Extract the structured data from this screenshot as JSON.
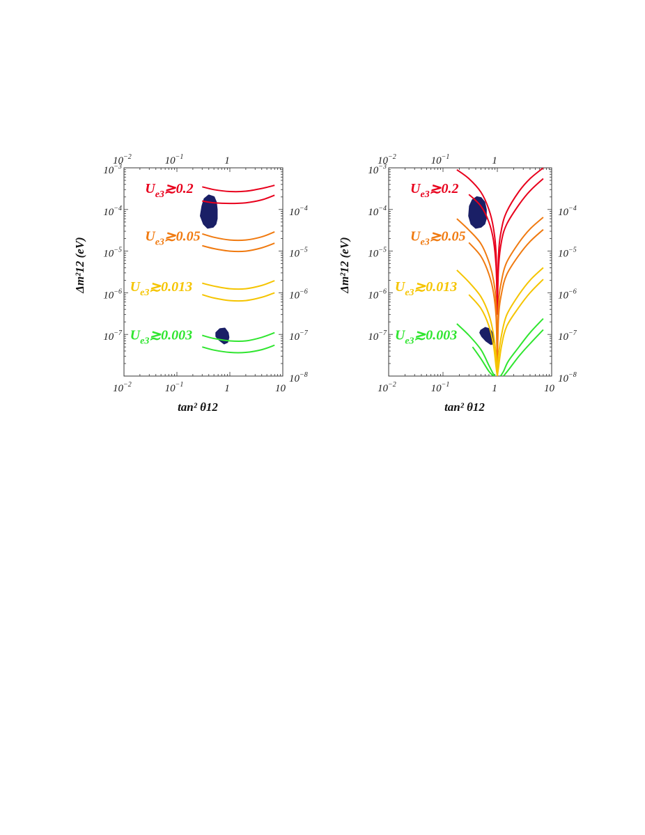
{
  "colors": {
    "red": "#e8001c",
    "orange": "#f07a10",
    "yellow": "#f5c400",
    "green": "#2fe52f",
    "region": "#1a1f66",
    "frame": "#333333"
  },
  "chart_data": [
    {
      "type": "line",
      "panel": "left",
      "xlabel": "tan² θ12",
      "ylabel": "Δm²12 (eV)",
      "x_scale": "log",
      "y_scale": "log",
      "xlim": [
        0.01,
        10
      ],
      "ylim": [
        1e-08,
        0.001
      ],
      "x_ticks": [
        {
          "v": 0.01,
          "base": "10",
          "exp": "−2"
        },
        {
          "v": 0.1,
          "base": "10",
          "exp": "−1"
        },
        {
          "v": 1,
          "base": "1",
          "exp": ""
        },
        {
          "v": 10,
          "base": "10",
          "exp": ""
        }
      ],
      "y_ticks_left": [
        {
          "v": 0.001,
          "base": "10",
          "exp": "−3"
        },
        {
          "v": 0.0001,
          "base": "10",
          "exp": "−4"
        },
        {
          "v": 1e-05,
          "base": "10",
          "exp": "−5"
        },
        {
          "v": 1e-06,
          "base": "10",
          "exp": "−6"
        },
        {
          "v": 1e-07,
          "base": "10",
          "exp": "−7"
        }
      ],
      "y_ticks_right": [
        {
          "v": 0.0001,
          "base": "10",
          "exp": "−4"
        },
        {
          "v": 1e-05,
          "base": "10",
          "exp": "−5"
        },
        {
          "v": 1e-06,
          "base": "10",
          "exp": "−6"
        },
        {
          "v": 1e-07,
          "base": "10",
          "exp": "−7"
        },
        {
          "v": 1e-08,
          "base": "10",
          "exp": "−8"
        }
      ],
      "band_labels": [
        {
          "sub": "e3",
          "text": "≳0.2",
          "color": "red",
          "x": 0.025,
          "y": 0.00025
        },
        {
          "sub": "e3",
          "text": "≳0.05",
          "color": "orange",
          "x": 0.025,
          "y": 1.8e-05
        },
        {
          "sub": "e3",
          "text": "≳0.013",
          "color": "yellow",
          "x": 0.013,
          "y": 1.1e-06
        },
        {
          "sub": "e3",
          "text": "≳0.003",
          "color": "green",
          "x": 0.013,
          "y": 7.5e-08
        }
      ],
      "series": [
        {
          "color": "red",
          "x": [
            0.3,
            0.5,
            1,
            2,
            4,
            7
          ],
          "y": [
            0.00035,
            0.0003,
            0.00027,
            0.000275,
            0.00032,
            0.00038
          ]
        },
        {
          "color": "red",
          "x": [
            0.3,
            0.5,
            1,
            2,
            4,
            7
          ],
          "y": [
            0.00016,
            0.000145,
            0.00014,
            0.000145,
            0.00017,
            0.00022
          ]
        },
        {
          "color": "orange",
          "x": [
            0.3,
            0.5,
            1,
            2,
            4,
            7
          ],
          "y": [
            2.6e-05,
            2.15e-05,
            1.85e-05,
            1.85e-05,
            2.2e-05,
            2.9e-05
          ]
        },
        {
          "color": "orange",
          "x": [
            0.3,
            0.5,
            1,
            2,
            4,
            7
          ],
          "y": [
            1.35e-05,
            1.15e-05,
            1e-05,
            1e-05,
            1.2e-05,
            1.55e-05
          ]
        },
        {
          "color": "yellow",
          "x": [
            0.3,
            0.5,
            1,
            2,
            4,
            7
          ],
          "y": [
            1.7e-06,
            1.45e-06,
            1.25e-06,
            1.25e-06,
            1.5e-06,
            1.95e-06
          ]
        },
        {
          "color": "yellow",
          "x": [
            0.3,
            0.5,
            1,
            2,
            4,
            7
          ],
          "y": [
            9e-07,
            7.5e-07,
            6.5e-07,
            6.5e-07,
            7.8e-07,
            1e-06
          ]
        },
        {
          "color": "green",
          "x": [
            0.3,
            0.5,
            1,
            2,
            4,
            7
          ],
          "y": [
            9.5e-08,
            8e-08,
            7e-08,
            7e-08,
            8.5e-08,
            1.1e-07
          ]
        },
        {
          "color": "green",
          "x": [
            0.3,
            0.5,
            1,
            2,
            4,
            7
          ],
          "y": [
            5e-08,
            4.2e-08,
            3.7e-08,
            3.7e-08,
            4.3e-08,
            5.5e-08
          ]
        }
      ],
      "regions": [
        {
          "x": [
            0.32,
            0.38,
            0.48,
            0.54,
            0.57,
            0.57,
            0.55,
            0.5,
            0.4,
            0.33,
            0.3,
            0.28
          ],
          "y": [
            4.5e-05,
            3.6e-05,
            3.8e-05,
            4.5e-05,
            6e-05,
            0.0001,
            0.00015,
            0.0002,
            0.00022,
            0.00018,
            0.00012,
            7e-05
          ]
        },
        {
          "x": [
            0.55,
            0.65,
            0.8,
            0.92,
            0.95,
            0.9,
            0.78,
            0.62,
            0.55
          ],
          "y": [
            1.1e-07,
            1.35e-07,
            1.4e-07,
            1.1e-07,
            8.5e-08,
            6.5e-08,
            6e-08,
            7.5e-08,
            9e-08
          ]
        }
      ]
    },
    {
      "type": "line",
      "panel": "right",
      "xlabel": "tan² θ12",
      "ylabel": "Δm²12 (eV)",
      "x_scale": "log",
      "y_scale": "log",
      "xlim": [
        0.01,
        10
      ],
      "ylim": [
        1e-08,
        0.001
      ],
      "x_ticks": [
        {
          "v": 0.01,
          "base": "10",
          "exp": "−2"
        },
        {
          "v": 0.1,
          "base": "10",
          "exp": "−1"
        },
        {
          "v": 1,
          "base": "1",
          "exp": ""
        },
        {
          "v": 10,
          "base": "10",
          "exp": ""
        }
      ],
      "y_ticks_left": [
        {
          "v": 0.001,
          "base": "10",
          "exp": "−3"
        },
        {
          "v": 0.0001,
          "base": "10",
          "exp": "−4"
        },
        {
          "v": 1e-05,
          "base": "10",
          "exp": "−5"
        },
        {
          "v": 1e-06,
          "base": "10",
          "exp": "−6"
        },
        {
          "v": 1e-07,
          "base": "10",
          "exp": "−7"
        }
      ],
      "y_ticks_right": [
        {
          "v": 0.0001,
          "base": "10",
          "exp": "−4"
        },
        {
          "v": 1e-05,
          "base": "10",
          "exp": "−5"
        },
        {
          "v": 1e-06,
          "base": "10",
          "exp": "−6"
        },
        {
          "v": 1e-07,
          "base": "10",
          "exp": "−7"
        },
        {
          "v": 1e-08,
          "base": "10",
          "exp": "−8"
        }
      ],
      "band_labels": [
        {
          "sub": "e3",
          "text": "≳0.2",
          "color": "red",
          "x": 0.025,
          "y": 0.00025
        },
        {
          "sub": "e3",
          "text": "≳0.05",
          "color": "orange",
          "x": 0.025,
          "y": 1.8e-05
        },
        {
          "sub": "e3",
          "text": "≳0.013",
          "color": "yellow",
          "x": 0.013,
          "y": 1.1e-06
        },
        {
          "sub": "e3",
          "text": "≳0.003",
          "color": "green",
          "x": 0.013,
          "y": 7.5e-08
        }
      ],
      "series": [
        {
          "color": "red",
          "x": [
            0.18,
            0.3,
            0.5,
            0.7,
            0.85,
            0.95,
            1.0
          ],
          "y": [
            0.0009,
            0.00055,
            0.00026,
            0.0001,
            3.5e-05,
            8e-06,
            3e-07
          ]
        },
        {
          "color": "red",
          "x": [
            1.0,
            1.05,
            1.2,
            1.5,
            2.5,
            4,
            7
          ],
          "y": [
            3e-07,
            8e-06,
            3.5e-05,
            9e-05,
            0.00027,
            0.00055,
            0.001
          ]
        },
        {
          "color": "red",
          "x": [
            0.3,
            0.5,
            0.7,
            0.85,
            0.95,
            1.0
          ],
          "y": [
            0.00023,
            0.00012,
            5e-05,
            1.8e-05,
            4e-06,
            3e-07
          ]
        },
        {
          "color": "red",
          "x": [
            1.0,
            1.05,
            1.2,
            1.5,
            2.5,
            4,
            7
          ],
          "y": [
            3e-07,
            4e-06,
            1.8e-05,
            4.5e-05,
            0.00013,
            0.00028,
            0.00055
          ]
        },
        {
          "color": "orange",
          "x": [
            0.18,
            0.3,
            0.5,
            0.7,
            0.85,
            0.95,
            1.0
          ],
          "y": [
            6e-05,
            3.2e-05,
            1.5e-05,
            5.5e-06,
            2e-06,
            5e-07,
            1.5e-08
          ]
        },
        {
          "color": "orange",
          "x": [
            1.0,
            1.05,
            1.2,
            1.5,
            2.5,
            4,
            7
          ],
          "y": [
            1.5e-08,
            5e-07,
            2e-06,
            5.5e-06,
            1.6e-05,
            3.4e-05,
            6.5e-05
          ]
        },
        {
          "color": "orange",
          "x": [
            0.3,
            0.5,
            0.7,
            0.85,
            0.95,
            1.0
          ],
          "y": [
            1.6e-05,
            7.5e-06,
            2.8e-06,
            1e-06,
            2.5e-07,
            1.5e-08
          ]
        },
        {
          "color": "orange",
          "x": [
            1.0,
            1.05,
            1.2,
            1.5,
            2.5,
            4,
            7
          ],
          "y": [
            1.5e-08,
            2.5e-07,
            1e-06,
            2.8e-06,
            8e-06,
            1.7e-05,
            3.3e-05
          ]
        },
        {
          "color": "yellow",
          "x": [
            0.18,
            0.3,
            0.5,
            0.7,
            0.85,
            0.95,
            1.0
          ],
          "y": [
            3.5e-06,
            1.8e-06,
            8e-07,
            3e-07,
            1e-07,
            3e-08,
            1e-08
          ]
        },
        {
          "color": "yellow",
          "x": [
            1.0,
            1.05,
            1.2,
            1.5,
            2.5,
            4,
            7
          ],
          "y": [
            1e-08,
            3e-08,
            1e-07,
            3e-07,
            9e-07,
            2e-06,
            4e-06
          ]
        },
        {
          "color": "yellow",
          "x": [
            0.3,
            0.5,
            0.7,
            0.85,
            0.95,
            1.0
          ],
          "y": [
            9e-07,
            4.2e-07,
            1.6e-07,
            5.5e-08,
            1.6e-08,
            1e-08
          ]
        },
        {
          "color": "yellow",
          "x": [
            1.0,
            1.05,
            1.2,
            1.5,
            2.5,
            4,
            7
          ],
          "y": [
            1e-08,
            1.6e-08,
            5.5e-08,
            1.6e-07,
            4.5e-07,
            1e-06,
            2.1e-06
          ]
        },
        {
          "color": "green",
          "x": [
            0.18,
            0.3,
            0.5,
            0.7,
            0.82,
            0.9
          ],
          "y": [
            1.8e-07,
            9.5e-08,
            4.3e-08,
            1.8e-08,
            1.2e-08,
            1e-08
          ]
        },
        {
          "color": "green",
          "x": [
            1.15,
            1.3,
            1.6,
            2.5,
            4,
            7
          ],
          "y": [
            1e-08,
            1.3e-08,
            2.3e-08,
            5e-08,
            1.1e-07,
            2.4e-07
          ]
        },
        {
          "color": "green",
          "x": [
            0.35,
            0.5,
            0.7,
            0.85
          ],
          "y": [
            5e-08,
            2.6e-08,
            1.3e-08,
            1e-08
          ]
        },
        {
          "color": "green",
          "x": [
            1.3,
            1.6,
            2.5,
            4,
            7
          ],
          "y": [
            1e-08,
            1.4e-08,
            3e-08,
            6e-08,
            1.3e-07
          ]
        }
      ],
      "regions": [
        {
          "x": [
            0.33,
            0.4,
            0.5,
            0.58,
            0.62,
            0.62,
            0.58,
            0.5,
            0.42,
            0.35,
            0.31,
            0.3
          ],
          "y": [
            4.5e-05,
            3.6e-05,
            3.8e-05,
            4.5e-05,
            6e-05,
            0.0001,
            0.00015,
            0.00019,
            0.0002,
            0.00017,
            0.00012,
            7e-05
          ]
        },
        {
          "x": [
            0.5,
            0.6,
            0.72,
            0.82,
            0.86,
            0.84,
            0.76,
            0.62,
            0.52,
            0.48
          ],
          "y": [
            1.25e-07,
            1.45e-07,
            1.35e-07,
            1.05e-07,
            7.5e-08,
            6e-08,
            5.8e-08,
            7e-08,
            9e-08,
            1.1e-07
          ]
        }
      ]
    }
  ]
}
